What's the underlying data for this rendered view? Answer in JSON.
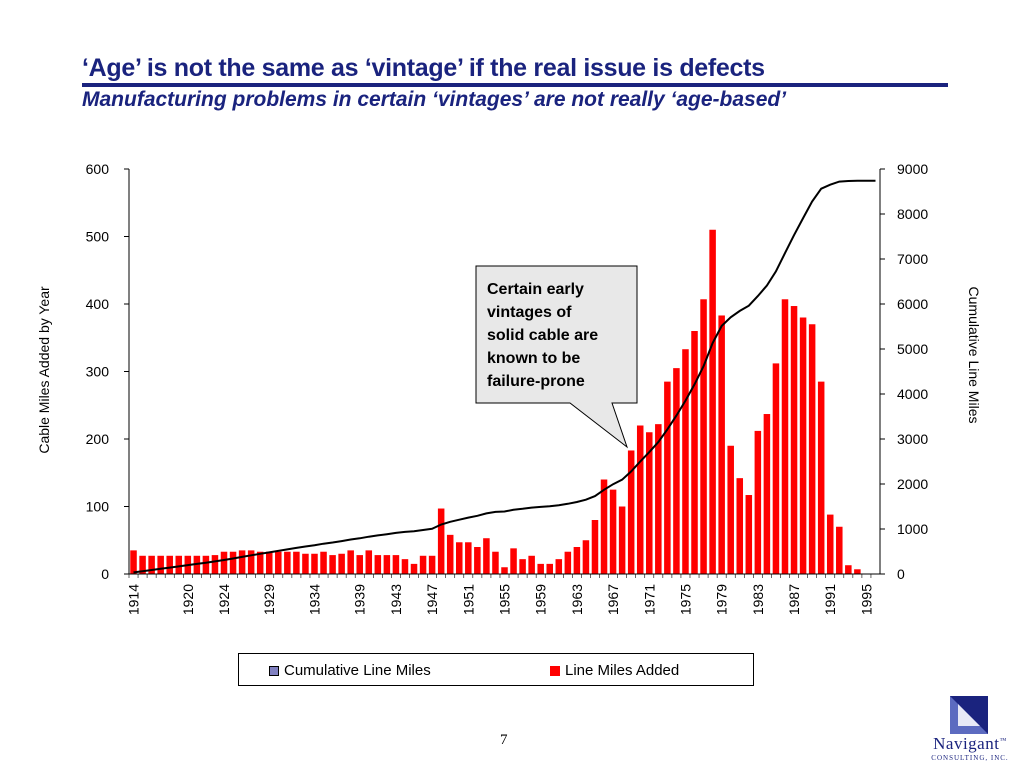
{
  "slide": {
    "title": "‘Age’ is not the same as ‘vintage’ if the real issue is defects",
    "subtitle": "Manufacturing problems in certain ‘vintages’ are not really ‘age-based’",
    "page_number": "7"
  },
  "logo": {
    "name": "Navigant",
    "mark": "™",
    "subtitle": "CONSULTING, INC."
  },
  "colors": {
    "title": "#1a237e",
    "bars": "#ff0000",
    "line": "#000000",
    "line_legend": "#8080c0"
  },
  "chart_data": {
    "type": "bar",
    "title": "",
    "years": [
      1914,
      1915,
      1916,
      1917,
      1918,
      1919,
      1920,
      1921,
      1922,
      1923,
      1924,
      1925,
      1926,
      1927,
      1928,
      1929,
      1930,
      1931,
      1932,
      1933,
      1934,
      1935,
      1936,
      1937,
      1938,
      1939,
      1940,
      1941,
      1942,
      1943,
      1944,
      1945,
      1946,
      1947,
      1948,
      1949,
      1950,
      1951,
      1952,
      1953,
      1954,
      1955,
      1956,
      1957,
      1958,
      1959,
      1960,
      1961,
      1962,
      1963,
      1964,
      1965,
      1966,
      1967,
      1968,
      1969,
      1970,
      1971,
      1972,
      1973,
      1974,
      1975,
      1976,
      1977,
      1978,
      1979,
      1980,
      1981,
      1982,
      1983,
      1984,
      1985,
      1986,
      1987,
      1988,
      1989,
      1990,
      1991,
      1992,
      1993,
      1994,
      1995,
      1996
    ],
    "x_tick_labels": [
      "1914",
      "1920",
      "1924",
      "1929",
      "1934",
      "1939",
      "1943",
      "1947",
      "1951",
      "1955",
      "1959",
      "1963",
      "1967",
      "1971",
      "1975",
      "1979",
      "1983",
      "1987",
      "1991",
      "1995"
    ],
    "series": [
      {
        "name": "Line Miles Added",
        "axis": "left",
        "style": "bar",
        "values": [
          35,
          27,
          27,
          27,
          27,
          27,
          27,
          27,
          27,
          28,
          33,
          33,
          35,
          35,
          33,
          33,
          33,
          33,
          33,
          30,
          30,
          33,
          28,
          30,
          35,
          28,
          35,
          28,
          28,
          28,
          22,
          15,
          27,
          27,
          97,
          58,
          47,
          47,
          40,
          53,
          33,
          10,
          38,
          22,
          27,
          15,
          15,
          22,
          33,
          40,
          50,
          80,
          140,
          125,
          100,
          183,
          220,
          210,
          222,
          285,
          305,
          333,
          360,
          407,
          510,
          383,
          190,
          142,
          117,
          212,
          237,
          312,
          407,
          397,
          380,
          370,
          285,
          88,
          70,
          13,
          7,
          0,
          0
        ]
      },
      {
        "name": "Cumulative Line Miles",
        "axis": "right",
        "style": "line",
        "values": [
          35,
          62,
          89,
          116,
          143,
          170,
          197,
          224,
          251,
          279,
          312,
          345,
          380,
          415,
          448,
          481,
          514,
          547,
          580,
          610,
          640,
          673,
          701,
          731,
          766,
          794,
          829,
          857,
          885,
          913,
          935,
          950,
          977,
          1004,
          1101,
          1159,
          1206,
          1253,
          1293,
          1346,
          1379,
          1389,
          1427,
          1449,
          1476,
          1491,
          1506,
          1528,
          1561,
          1601,
          1651,
          1731,
          1871,
          1996,
          2096,
          2279,
          2499,
          2709,
          2931,
          3216,
          3521,
          3854,
          4214,
          4621,
          5131,
          5514,
          5704,
          5846,
          5963,
          6175,
          6412,
          6724,
          7131,
          7528,
          7908,
          8278,
          8563,
          8651,
          8721,
          8734,
          8741,
          8741,
          8741
        ]
      }
    ],
    "ylabel": "Cable Miles Added by Year",
    "y2label": "Cumulative Line Miles",
    "xlabel": "",
    "ylim": [
      0,
      600
    ],
    "y2lim": [
      0,
      9000
    ],
    "yticks": [
      0,
      100,
      200,
      300,
      400,
      500,
      600
    ],
    "y2ticks": [
      0,
      1000,
      2000,
      3000,
      4000,
      5000,
      6000,
      7000,
      8000,
      9000
    ],
    "grid": false,
    "legend_position": "bottom",
    "annotation": {
      "lines": [
        "Certain early",
        "vintages of",
        "solid cable are",
        "known to be",
        "failure-prone"
      ],
      "points_to_year": 1970
    }
  }
}
